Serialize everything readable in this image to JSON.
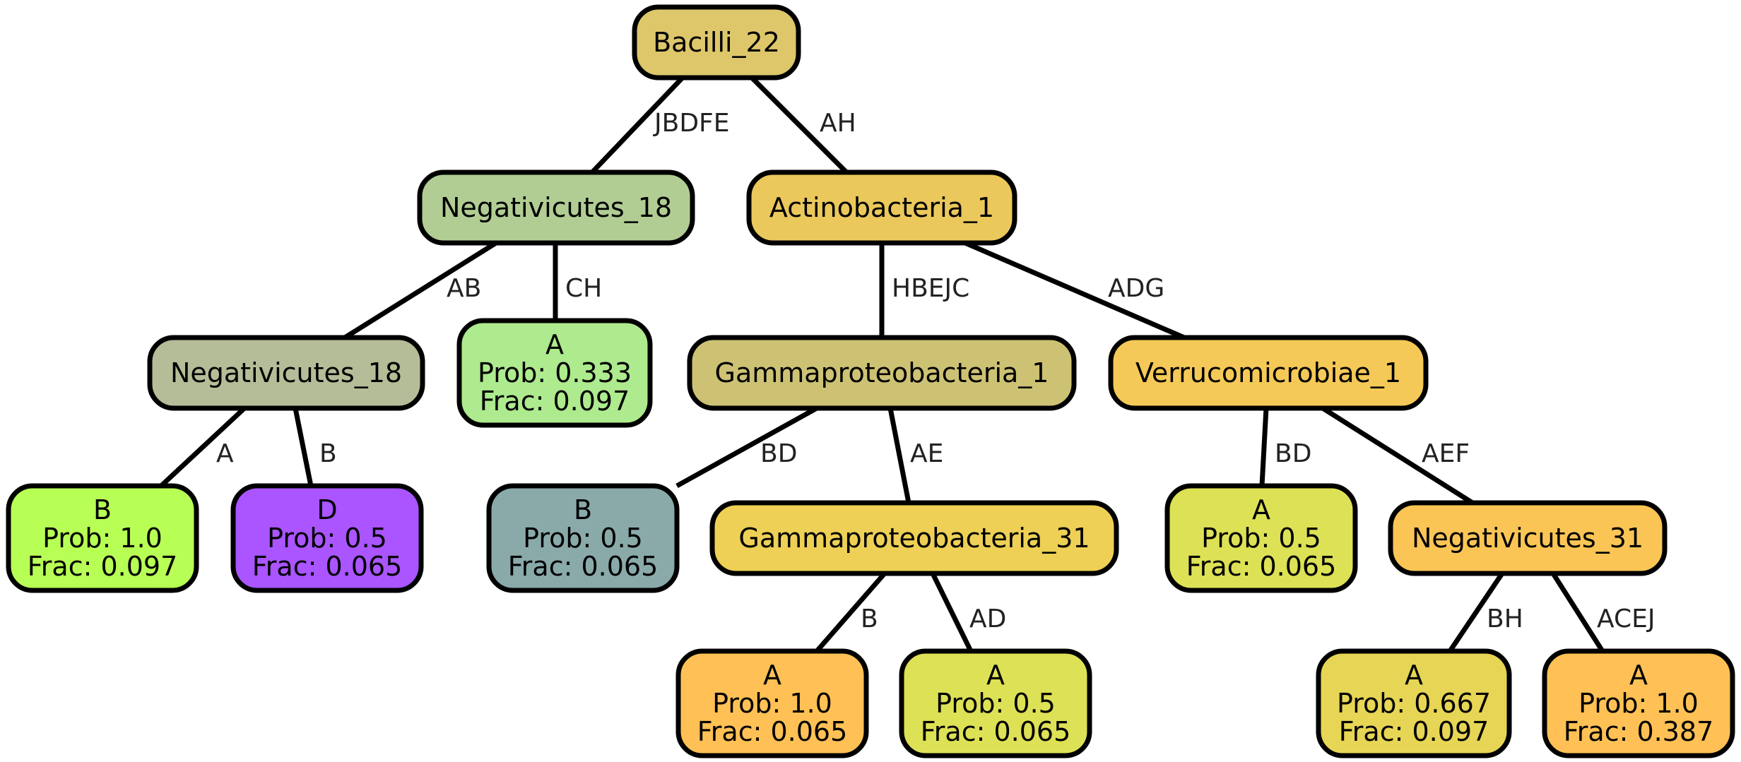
{
  "tree": {
    "nodes": [
      {
        "id": "n0",
        "lines": [
          "Bacilli_22"
        ],
        "fill": "#DEC76B"
      },
      {
        "id": "n1",
        "lines": [
          "Negativicutes_18"
        ],
        "fill": "#B1CD94"
      },
      {
        "id": "n2",
        "lines": [
          "Actinobacteria_1"
        ],
        "fill": "#EBC85B"
      },
      {
        "id": "n3",
        "lines": [
          "Negativicutes_18"
        ],
        "fill": "#B5BD98"
      },
      {
        "id": "n4",
        "lines": [
          "A",
          "Prob: 0.333",
          "Frac: 0.097"
        ],
        "fill": "#AEEA8E"
      },
      {
        "id": "n5",
        "lines": [
          "Gammaproteobacteria_1"
        ],
        "fill": "#CDC274"
      },
      {
        "id": "n6",
        "lines": [
          "Verrucomicrobiae_1"
        ],
        "fill": "#F5C957"
      },
      {
        "id": "n7",
        "lines": [
          "B",
          "Prob: 1.0",
          "Frac: 0.097"
        ],
        "fill": "#B8FF55"
      },
      {
        "id": "n8",
        "lines": [
          "D",
          "Prob: 0.5",
          "Frac: 0.065"
        ],
        "fill": "#AA55FF"
      },
      {
        "id": "n9",
        "lines": [
          "B",
          "Prob: 0.5",
          "Frac: 0.065"
        ],
        "fill": "#8AAAAA"
      },
      {
        "id": "n10",
        "lines": [
          "Gammaproteobacteria_31"
        ],
        "fill": "#EDD055"
      },
      {
        "id": "n11",
        "lines": [
          "A",
          "Prob: 0.5",
          "Frac: 0.065"
        ],
        "fill": "#DDE155"
      },
      {
        "id": "n12",
        "lines": [
          "Negativicutes_31"
        ],
        "fill": "#FBC556"
      },
      {
        "id": "n13",
        "lines": [
          "A",
          "Prob: 1.0",
          "Frac: 0.065"
        ],
        "fill": "#FFC155"
      },
      {
        "id": "n14",
        "lines": [
          "A",
          "Prob: 0.5",
          "Frac: 0.065"
        ],
        "fill": "#DDE155"
      },
      {
        "id": "n15",
        "lines": [
          "A",
          "Prob: 0.667",
          "Frac: 0.097"
        ],
        "fill": "#E7D555"
      },
      {
        "id": "n16",
        "lines": [
          "A",
          "Prob: 1.0",
          "Frac: 0.387"
        ],
        "fill": "#FFC155"
      }
    ],
    "edges": [
      {
        "from": "n0",
        "to": "n1",
        "label": "JBDFE"
      },
      {
        "from": "n0",
        "to": "n2",
        "label": "AH"
      },
      {
        "from": "n1",
        "to": "n3",
        "label": "AB"
      },
      {
        "from": "n1",
        "to": "n4",
        "label": "CH"
      },
      {
        "from": "n2",
        "to": "n5",
        "label": "HBEJC"
      },
      {
        "from": "n2",
        "to": "n6",
        "label": "ADG"
      },
      {
        "from": "n3",
        "to": "n7",
        "label": "A"
      },
      {
        "from": "n3",
        "to": "n8",
        "label": "B"
      },
      {
        "from": "n5",
        "to": "n9",
        "label": "BD"
      },
      {
        "from": "n5",
        "to": "n10",
        "label": "AE"
      },
      {
        "from": "n6",
        "to": "n11",
        "label": "BD"
      },
      {
        "from": "n6",
        "to": "n12",
        "label": "AEF"
      },
      {
        "from": "n10",
        "to": "n13",
        "label": "B"
      },
      {
        "from": "n10",
        "to": "n14",
        "label": "AD"
      },
      {
        "from": "n12",
        "to": "n15",
        "label": "BH"
      },
      {
        "from": "n12",
        "to": "n16",
        "label": "ACEJ"
      }
    ]
  }
}
